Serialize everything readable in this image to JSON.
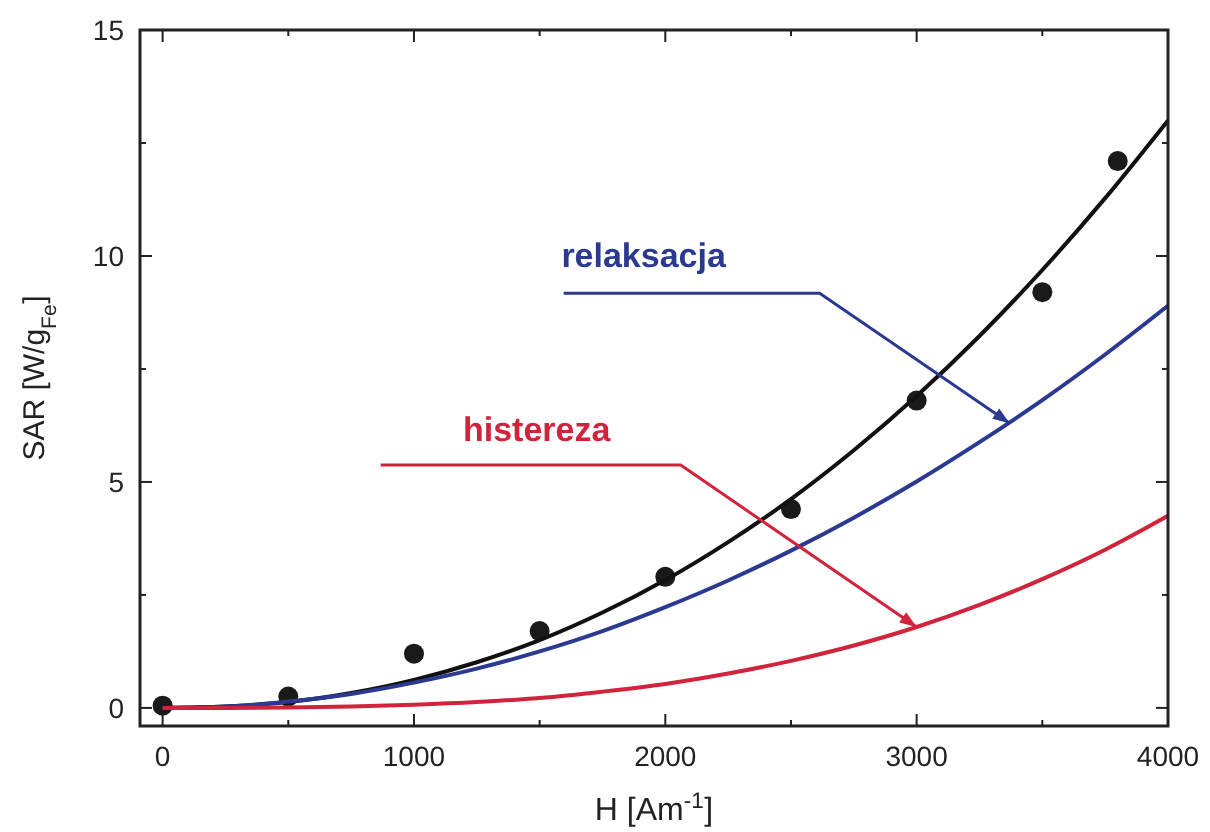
{
  "chart_data": {
    "type": "line",
    "xlabel": "H [Am$^{-1}$]",
    "ylabel": "SAR  [W/g$_{Fe}$]",
    "xlim": [
      -90,
      4000
    ],
    "ylim": [
      -0.4,
      15
    ],
    "xticks": [
      0,
      {
        "value": 500,
        "label": null
      },
      1000,
      {
        "value": 1500,
        "label": null
      },
      2000,
      {
        "value": 2500,
        "label": null
      },
      3000,
      {
        "value": 3500,
        "label": null
      },
      4000
    ],
    "yticks": [
      0,
      {
        "value": 2.5,
        "label": null
      },
      5,
      {
        "value": 7.5,
        "label": null
      },
      10,
      {
        "value": 12.5,
        "label": null
      },
      15
    ],
    "grid": false,
    "x": [
      0,
      250,
      500,
      750,
      1000,
      1250,
      1500,
      1750,
      2000,
      2250,
      2500,
      2750,
      3000,
      3250,
      3500,
      3750,
      4000
    ],
    "series": [
      {
        "type": "scatter",
        "marker": "circle",
        "color": "#1a1a1a",
        "x": [
          0,
          500,
          1000,
          1500,
          2000,
          2500,
          3000,
          3500,
          3800
        ],
        "values": [
          0.05,
          0.25,
          1.2,
          1.7,
          2.9,
          4.4,
          6.8,
          9.2,
          12.1
        ]
      },
      {
        "color": "#111111",
        "values": [
          0,
          0.03,
          0.13,
          0.33,
          0.62,
          1.01,
          1.5,
          2.11,
          2.83,
          3.67,
          4.62,
          5.7,
          6.9,
          8.23,
          9.69,
          11.28,
          13.0
        ]
      },
      {
        "color": "#2b3990",
        "values": [
          0,
          0.03,
          0.14,
          0.31,
          0.56,
          0.87,
          1.25,
          1.7,
          2.23,
          2.82,
          3.48,
          4.21,
          5.01,
          5.88,
          6.81,
          7.82,
          8.9
        ]
      },
      {
        "color": "#d2233c",
        "values": [
          0,
          0,
          0.01,
          0.03,
          0.07,
          0.13,
          0.22,
          0.36,
          0.53,
          0.76,
          1.04,
          1.38,
          1.79,
          2.28,
          2.85,
          3.5,
          4.25
        ]
      }
    ],
    "annotations": [
      {
        "text": "relaksacja",
        "x": 3370,
        "y": 6.3
      },
      {
        "text": "histereza",
        "x": 3000,
        "y": 1.79
      }
    ]
  }
}
